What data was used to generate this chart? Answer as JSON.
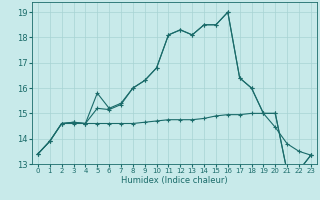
{
  "xlabel": "Humidex (Indice chaleur)",
  "background_color": "#c8eaea",
  "grid_color": "#a8d4d4",
  "line_color": "#1a6b6a",
  "x_values": [
    0,
    1,
    2,
    3,
    4,
    5,
    6,
    7,
    8,
    9,
    10,
    11,
    12,
    13,
    14,
    15,
    16,
    17,
    18,
    19,
    20,
    21,
    22,
    23
  ],
  "series1": [
    13.4,
    13.9,
    14.6,
    14.6,
    14.6,
    15.8,
    15.2,
    15.4,
    16.0,
    16.3,
    16.8,
    18.1,
    18.3,
    18.1,
    18.5,
    18.5,
    19.0,
    16.4,
    16.0,
    15.0,
    15.0,
    12.7,
    12.75,
    13.35
  ],
  "series2": [
    13.4,
    13.9,
    14.6,
    14.65,
    14.6,
    14.6,
    14.6,
    14.6,
    14.6,
    14.65,
    14.7,
    14.75,
    14.75,
    14.75,
    14.8,
    14.9,
    14.95,
    14.95,
    15.0,
    15.0,
    14.45,
    13.8,
    13.5,
    13.35
  ],
  "series3": [
    13.4,
    13.9,
    14.6,
    14.65,
    14.6,
    15.2,
    15.15,
    15.35,
    16.0,
    16.3,
    16.8,
    18.1,
    18.3,
    18.1,
    18.5,
    18.5,
    19.0,
    16.4,
    16.0,
    15.0,
    15.0,
    12.7,
    12.75,
    13.35
  ],
  "ylim": [
    13,
    19.4
  ],
  "xlim": [
    -0.5,
    23.5
  ],
  "yticks": [
    13,
    14,
    15,
    16,
    17,
    18,
    19
  ],
  "xticks": [
    0,
    1,
    2,
    3,
    4,
    5,
    6,
    7,
    8,
    9,
    10,
    11,
    12,
    13,
    14,
    15,
    16,
    17,
    18,
    19,
    20,
    21,
    22,
    23
  ]
}
